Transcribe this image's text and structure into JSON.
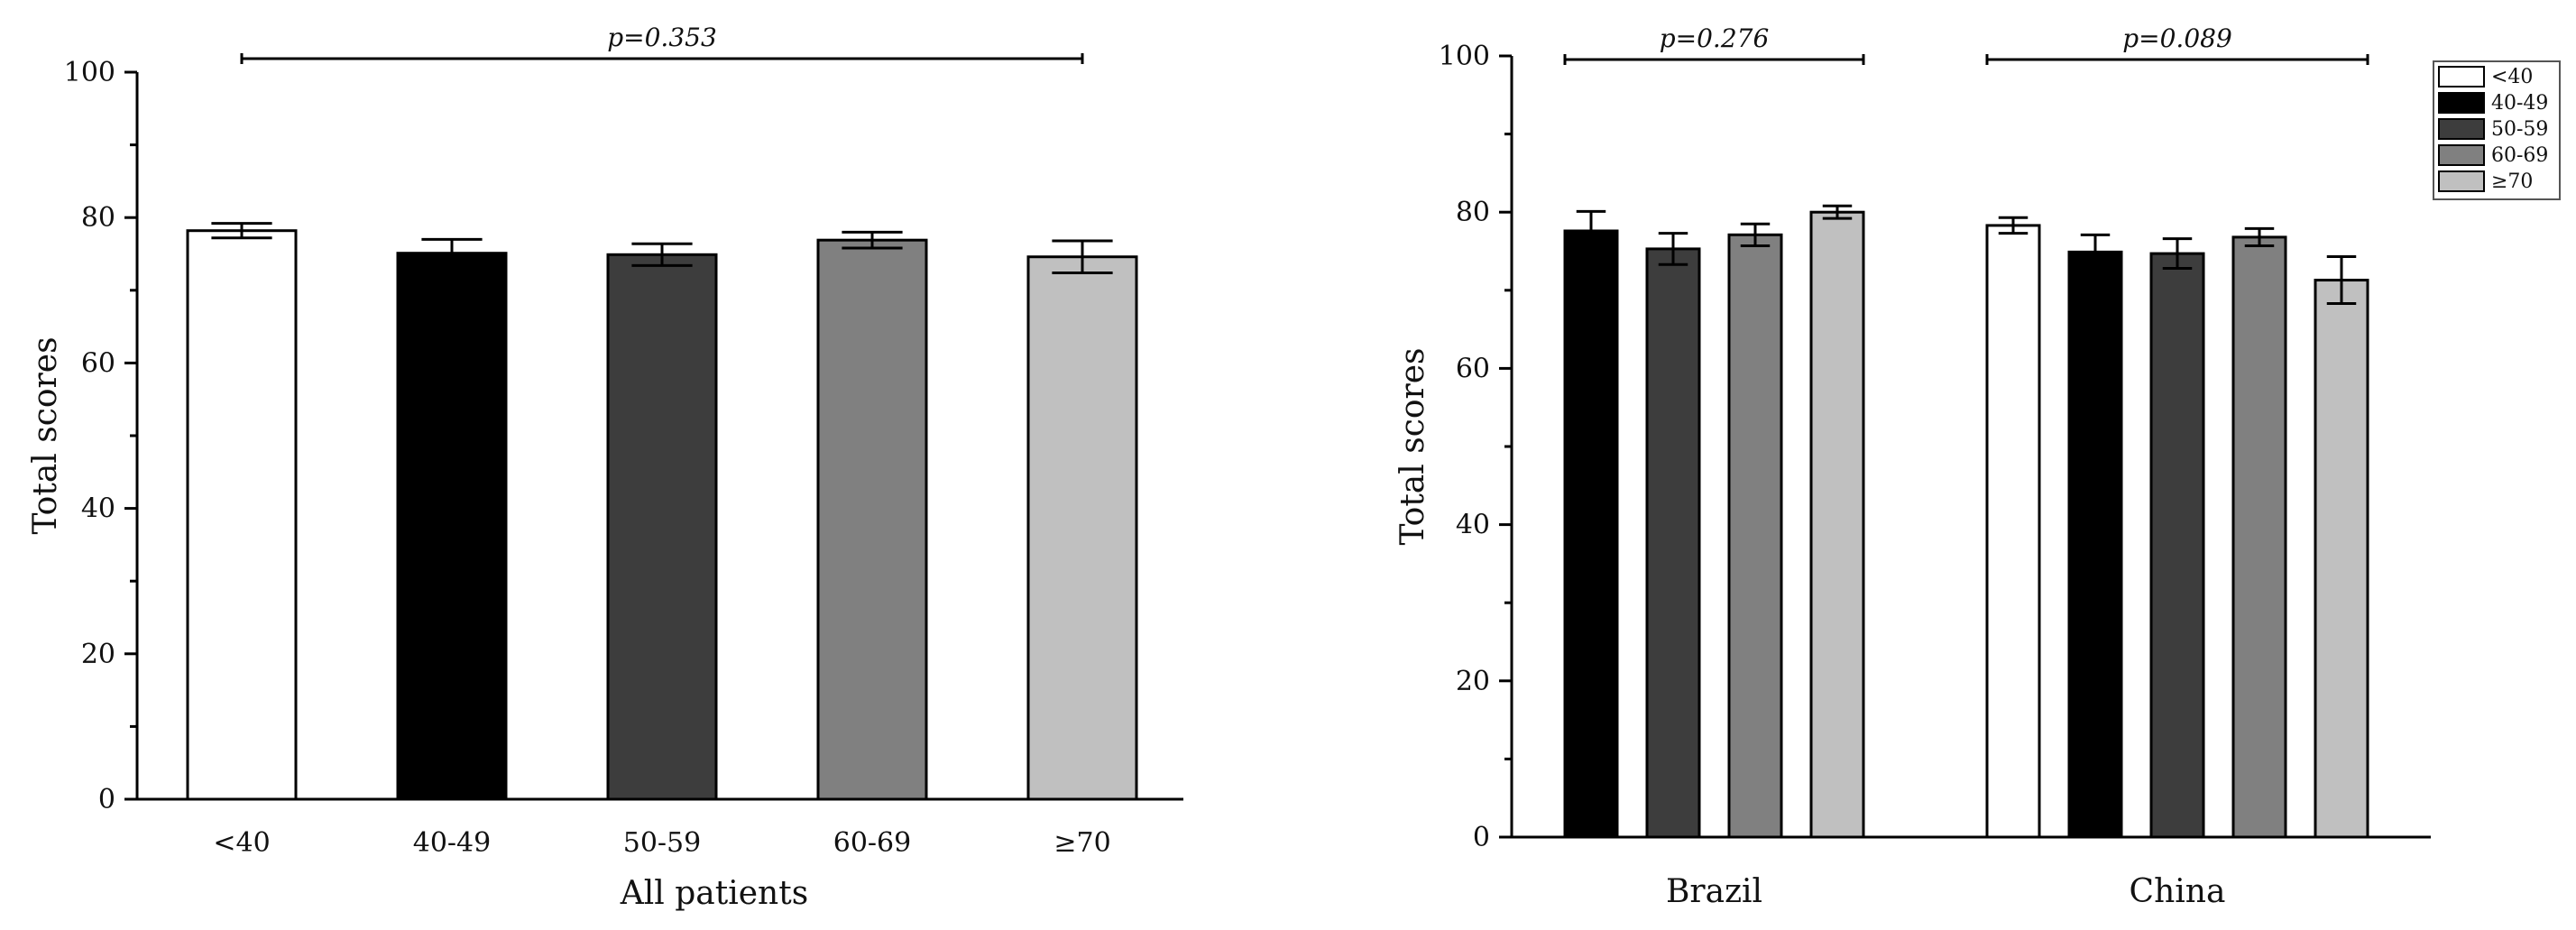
{
  "chart_data": [
    {
      "type": "bar",
      "ylabel": "Total scores",
      "xlabel": "All patients",
      "ylim": [
        0,
        100
      ],
      "yticks": [
        "0",
        "20",
        "40",
        "60",
        "80",
        "100"
      ],
      "categories": [
        "<40",
        "40-49",
        "50-59",
        "60-69",
        "≥70"
      ],
      "values": [
        78.2,
        75.1,
        74.9,
        76.9,
        74.6
      ],
      "errors": [
        1.0,
        1.9,
        1.5,
        1.1,
        2.2
      ],
      "colors": [
        "#ffffff",
        "#000000",
        "#3d3d3d",
        "#808080",
        "#c0c0c0"
      ],
      "p_values": [
        {
          "label": "p=0.353",
          "from": 0,
          "to": 4
        }
      ]
    },
    {
      "type": "bar",
      "ylabel": "Total scores",
      "xlabel": "",
      "ylim": [
        0,
        100
      ],
      "yticks": [
        "0",
        "20",
        "40",
        "60",
        "80",
        "100"
      ],
      "groups": [
        "Brazil",
        "China"
      ],
      "series": [
        {
          "name": "<40",
          "color": "#ffffff",
          "values": [
            null,
            78.3
          ],
          "errors": [
            null,
            1.0
          ]
        },
        {
          "name": "40-49",
          "color": "#000000",
          "values": [
            77.6,
            74.9
          ],
          "errors": [
            2.5,
            2.2
          ]
        },
        {
          "name": "50-59",
          "color": "#3d3d3d",
          "values": [
            75.3,
            74.7
          ],
          "errors": [
            2.0,
            1.9
          ]
        },
        {
          "name": "60-69",
          "color": "#808080",
          "values": [
            77.1,
            76.8
          ],
          "errors": [
            1.4,
            1.1
          ]
        },
        {
          "name": "≥70",
          "color": "#c0c0c0",
          "values": [
            80.0,
            71.3
          ],
          "errors": [
            0.8,
            3.0
          ]
        }
      ],
      "p_values": [
        {
          "label": "p=0.276",
          "group": 0
        },
        {
          "label": "p=0.089",
          "group": 1
        }
      ],
      "legend": "top-right"
    }
  ]
}
